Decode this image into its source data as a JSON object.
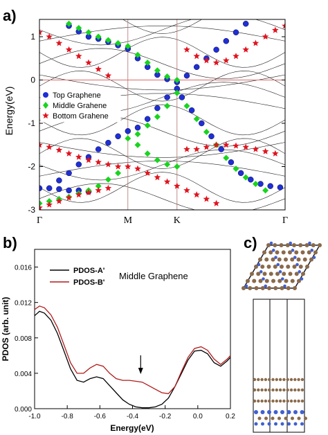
{
  "panels": {
    "a": {
      "label": "a)"
    },
    "b": {
      "label": "b)"
    },
    "c": {
      "label": "c)"
    }
  },
  "colors": {
    "top": "#1f2fd6",
    "middle": "#19d41e",
    "bottom": "#e0141e",
    "pdos_a": "#000000",
    "pdos_b": "#b01a1a",
    "fermi": "#e06a6a",
    "kline": "#b07070",
    "carbon": "#8a6a4a",
    "nitrogen": "#4060d0"
  },
  "chart_data": [
    {
      "type": "scatter",
      "ylabel": "Energy(eV)",
      "xlabel": "",
      "ylim": [
        -3,
        1.4
      ],
      "y_ticks": [
        "1",
        "0",
        "-1",
        "-2",
        "-3"
      ],
      "k_ticks": [
        "Γ",
        "M",
        "K",
        "Γ"
      ],
      "k_positions": [
        0,
        0.36,
        0.56,
        1.0
      ],
      "fermi_level": 0,
      "grid": false,
      "legend_position": "center-left",
      "series": [
        {
          "name": "Top Graphene",
          "marker": "circle",
          "points": [
            [
              0.36,
              0.72
            ],
            [
              0.4,
              0.5
            ],
            [
              0.44,
              0.3
            ],
            [
              0.48,
              0.12
            ],
            [
              0.52,
              0.02
            ],
            [
              0.56,
              -0.05
            ],
            [
              0.6,
              0.1
            ],
            [
              0.64,
              0.3
            ],
            [
              0.68,
              0.5
            ],
            [
              0.72,
              0.7
            ],
            [
              0.76,
              0.9
            ],
            [
              0.8,
              1.1
            ],
            [
              0.84,
              1.3
            ],
            [
              0.56,
              -0.2
            ],
            [
              0.52,
              -0.4
            ],
            [
              0.48,
              -0.65
            ],
            [
              0.44,
              -0.9
            ],
            [
              0.4,
              -1.1
            ],
            [
              0.36,
              -1.18
            ],
            [
              0.32,
              -1.3
            ],
            [
              0.28,
              -1.45
            ],
            [
              0.24,
              -1.6
            ],
            [
              0.2,
              -1.78
            ],
            [
              0.16,
              -1.95
            ],
            [
              0.12,
              -2.15
            ],
            [
              0.08,
              -2.32
            ],
            [
              0.58,
              -0.4
            ],
            [
              0.62,
              -0.7
            ],
            [
              0.66,
              -1.0
            ],
            [
              0.7,
              -1.3
            ],
            [
              0.74,
              -1.6
            ],
            [
              0.78,
              -1.9
            ],
            [
              0.82,
              -2.15
            ],
            [
              0.86,
              -2.3
            ],
            [
              0.9,
              -2.4
            ],
            [
              0.94,
              -2.45
            ],
            [
              0.98,
              -2.48
            ],
            [
              0.2,
              1.0
            ],
            [
              0.24,
              0.95
            ],
            [
              0.28,
              0.88
            ],
            [
              0.32,
              0.8
            ],
            [
              0.12,
              1.25
            ],
            [
              0.16,
              1.12
            ],
            [
              0.0,
              -2.5
            ],
            [
              0.04,
              -2.5
            ],
            [
              0.08,
              -2.52
            ],
            [
              0.12,
              -2.55
            ],
            [
              0.16,
              -2.55
            ],
            [
              0.2,
              -2.58
            ]
          ]
        },
        {
          "name": "Middle Grahene",
          "marker": "diamond",
          "points": [
            [
              0.36,
              0.78
            ],
            [
              0.4,
              0.58
            ],
            [
              0.44,
              0.4
            ],
            [
              0.48,
              0.22
            ],
            [
              0.52,
              0.08
            ],
            [
              0.56,
              0.0
            ],
            [
              0.56,
              -0.3
            ],
            [
              0.52,
              -0.6
            ],
            [
              0.48,
              -0.85
            ],
            [
              0.44,
              -1.05
            ],
            [
              0.4,
              -1.25
            ],
            [
              0.36,
              -1.35
            ],
            [
              0.4,
              -1.5
            ],
            [
              0.44,
              -1.7
            ],
            [
              0.48,
              -1.85
            ],
            [
              0.52,
              -1.95
            ],
            [
              0.56,
              -2.0
            ],
            [
              0.6,
              -0.6
            ],
            [
              0.64,
              -0.9
            ],
            [
              0.68,
              -1.2
            ],
            [
              0.72,
              -1.5
            ],
            [
              0.76,
              -1.8
            ],
            [
              0.8,
              -2.05
            ],
            [
              0.84,
              -2.25
            ],
            [
              0.88,
              -2.4
            ],
            [
              0.92,
              -2.55
            ],
            [
              0.0,
              -2.85
            ],
            [
              0.04,
              -2.8
            ],
            [
              0.08,
              -2.75
            ],
            [
              0.12,
              -2.7
            ],
            [
              0.16,
              -2.62
            ],
            [
              0.2,
              -2.55
            ],
            [
              0.24,
              -2.45
            ],
            [
              0.28,
              -2.3
            ],
            [
              0.32,
              -2.15
            ],
            [
              0.12,
              1.3
            ],
            [
              0.16,
              1.2
            ],
            [
              0.2,
              1.1
            ],
            [
              0.24,
              1.0
            ],
            [
              0.28,
              0.92
            ],
            [
              0.32,
              0.85
            ]
          ]
        },
        {
          "name": "Bottom Grahene",
          "marker": "star",
          "points": [
            [
              0.0,
              1.1
            ],
            [
              0.04,
              1.0
            ],
            [
              0.08,
              0.85
            ],
            [
              0.12,
              0.7
            ],
            [
              0.16,
              0.55
            ],
            [
              0.2,
              0.4
            ],
            [
              0.24,
              0.25
            ],
            [
              0.28,
              0.1
            ],
            [
              0.6,
              0.7
            ],
            [
              0.64,
              0.55
            ],
            [
              0.68,
              0.45
            ],
            [
              0.72,
              0.4
            ],
            [
              0.76,
              0.45
            ],
            [
              0.8,
              0.55
            ],
            [
              0.84,
              0.7
            ],
            [
              0.88,
              0.85
            ],
            [
              0.92,
              1.0
            ],
            [
              0.96,
              1.15
            ],
            [
              1.0,
              1.25
            ],
            [
              0.0,
              -1.5
            ],
            [
              0.04,
              -1.55
            ],
            [
              0.08,
              -1.62
            ],
            [
              0.12,
              -1.7
            ],
            [
              0.16,
              -1.78
            ],
            [
              0.2,
              -1.85
            ],
            [
              0.24,
              -1.9
            ],
            [
              0.28,
              -1.95
            ],
            [
              0.32,
              -2.0
            ],
            [
              0.6,
              -1.6
            ],
            [
              0.64,
              -1.6
            ],
            [
              0.68,
              -1.55
            ],
            [
              0.72,
              -1.5
            ],
            [
              0.76,
              -1.5
            ],
            [
              0.8,
              -1.52
            ],
            [
              0.84,
              -1.55
            ],
            [
              0.88,
              -1.6
            ],
            [
              0.92,
              -1.65
            ],
            [
              0.96,
              -1.7
            ],
            [
              0.36,
              -2.0
            ],
            [
              0.4,
              -2.05
            ],
            [
              0.44,
              -2.15
            ],
            [
              0.48,
              -2.25
            ],
            [
              0.52,
              -2.35
            ],
            [
              0.56,
              -2.45
            ],
            [
              0.6,
              -2.55
            ],
            [
              0.64,
              -2.65
            ],
            [
              0.68,
              -2.75
            ],
            [
              0.72,
              -2.85
            ],
            [
              0.0,
              -2.95
            ],
            [
              0.04,
              -2.88
            ],
            [
              0.08,
              -2.8
            ],
            [
              0.12,
              -2.72
            ],
            [
              0.16,
              -2.65
            ],
            [
              0.2,
              -2.6
            ],
            [
              0.24,
              -2.55
            ],
            [
              0.28,
              -2.5
            ]
          ]
        }
      ]
    },
    {
      "type": "line",
      "title": "",
      "annotation": "Middle Graphene",
      "xlabel": "Energy(eV)",
      "ylabel": "PDOS (arb. unit)",
      "xlim": [
        -1.0,
        0.2
      ],
      "ylim": [
        0.0,
        0.018
      ],
      "x_ticks": [
        "-1.0",
        "-0.8",
        "-0.6",
        "-0.4",
        "-0.2",
        "0.0",
        "0.2"
      ],
      "y_ticks": [
        "0.000",
        "0.004",
        "0.008",
        "0.012",
        "0.016"
      ],
      "legend_position": "top-left",
      "arrow_at_x": -0.35,
      "series": [
        {
          "name": "PDOS-A'",
          "x": [
            -1.0,
            -0.97,
            -0.94,
            -0.9,
            -0.86,
            -0.82,
            -0.78,
            -0.74,
            -0.7,
            -0.66,
            -0.62,
            -0.58,
            -0.54,
            -0.5,
            -0.46,
            -0.42,
            -0.38,
            -0.34,
            -0.3,
            -0.26,
            -0.22,
            -0.18,
            -0.14,
            -0.1,
            -0.06,
            -0.02,
            0.02,
            0.06,
            0.1,
            0.14,
            0.18,
            0.2
          ],
          "y": [
            0.0105,
            0.011,
            0.0108,
            0.01,
            0.0085,
            0.0065,
            0.0045,
            0.0032,
            0.003,
            0.0034,
            0.0036,
            0.0034,
            0.0026,
            0.0018,
            0.001,
            0.0005,
            0.0002,
            0.0001,
            0.0001,
            0.0002,
            0.0005,
            0.0012,
            0.0025,
            0.004,
            0.0055,
            0.0065,
            0.0066,
            0.0062,
            0.0052,
            0.0048,
            0.0054,
            0.0058
          ]
        },
        {
          "name": "PDOS-B'",
          "x": [
            -1.0,
            -0.97,
            -0.94,
            -0.9,
            -0.86,
            -0.82,
            -0.78,
            -0.74,
            -0.7,
            -0.66,
            -0.62,
            -0.58,
            -0.54,
            -0.5,
            -0.46,
            -0.42,
            -0.38,
            -0.34,
            -0.3,
            -0.26,
            -0.22,
            -0.18,
            -0.14,
            -0.1,
            -0.06,
            -0.02,
            0.02,
            0.06,
            0.1,
            0.14,
            0.18,
            0.2
          ],
          "y": [
            0.0112,
            0.0116,
            0.0114,
            0.0106,
            0.0092,
            0.0072,
            0.0052,
            0.004,
            0.004,
            0.0046,
            0.005,
            0.0048,
            0.004,
            0.0034,
            0.0032,
            0.0032,
            0.0031,
            0.003,
            0.0026,
            0.0022,
            0.0018,
            0.0017,
            0.0025,
            0.0042,
            0.0058,
            0.0068,
            0.007,
            0.0066,
            0.0056,
            0.005,
            0.0056,
            0.006
          ]
        }
      ]
    }
  ]
}
